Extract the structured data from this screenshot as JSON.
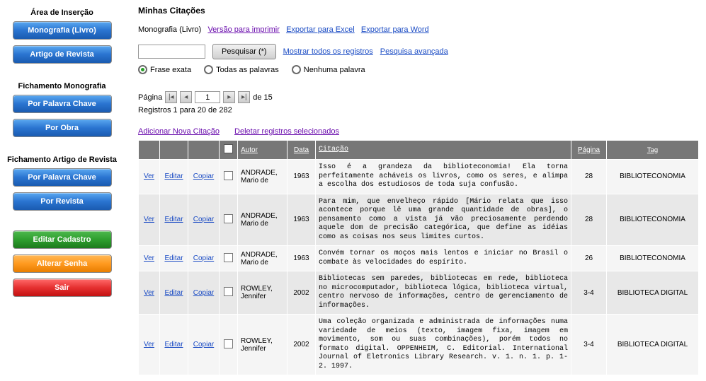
{
  "sidebar": {
    "sec1_title": "Área de Inserção",
    "btn1": "Monografia (Livro)",
    "btn2": "Artigo de Revista",
    "sec2_title": "Fichamento Monografia",
    "btn3": "Por Palavra Chave",
    "btn4": "Por Obra",
    "sec3_title": "Fichamento Artigo de Revista",
    "btn5": "Por Palavra Chave",
    "btn6": "Por Revista",
    "btn7": "Editar Cadastro",
    "btn8": "Alterar Senha",
    "btn9": "Sair"
  },
  "main": {
    "title": "Minhas Citações",
    "subtitle": "Monografia (Livro)",
    "link_print": "Versão para imprimir",
    "link_excel": "Exportar para Excel",
    "link_word": "Exportar para Word",
    "search_btn": "Pesquisar (*)",
    "link_showall": "Mostrar todos os registros",
    "link_adv": "Pesquisa avançada",
    "radio1": "Frase exata",
    "radio2": "Todas as palavras",
    "radio3": "Nenhuma palavra",
    "pager_label": "Página",
    "pager_page": "1",
    "pager_of": "de 15",
    "reg_info": "Registros 1 para 20 de 282",
    "link_add": "Adicionar Nova Citação",
    "link_del": "Deletar registros selecionados",
    "th_autor": "Autor",
    "th_data": "Data",
    "th_cit": "Citação",
    "th_pag": "Página",
    "th_tag": "Tag",
    "lbl_ver": "Ver",
    "lbl_editar": "Editar",
    "lbl_copiar": "Copiar",
    "rows": [
      {
        "autor": "ANDRADE, Mario de",
        "data": "1963",
        "cit": "Isso é a grandeza da biblioteconomia! Ela torna perfeitamente acháveis os livros, como os seres, e alimpa a escolha dos estudiosos de toda suja confusão.",
        "pag": "28",
        "tag": "BIBLIOTECONOMIA"
      },
      {
        "autor": "ANDRADE, Mario de",
        "data": "1963",
        "cit": "Para mim, que envelheço rápido [Mário relata que isso acontece porque lê uma grande quantidade de obras], o pensamento como a vista já vão preciosamente perdendo aquele dom de precisão categórica, que define as idéias como as coisas nos seus limites curtos.",
        "pag": "28",
        "tag": "BIBLIOTECONOMIA"
      },
      {
        "autor": "ANDRADE, Mario de",
        "data": "1963",
        "cit": "Convém tornar os moços mais lentos e iniciar no Brasil o combate às velocidades do espírito.",
        "pag": "26",
        "tag": "BIBLIOTECONOMIA"
      },
      {
        "autor": "ROWLEY, Jennifer",
        "data": "2002",
        "cit": "Bibliotecas sem paredes, bibliotecas em rede, biblioteca no microcomputador, biblioteca lógica, biblioteca virtual, centro nervoso de informações, centro de gerenciamento de informações.",
        "pag": "3-4",
        "tag": "BIBLIOTECA DIGITAL"
      },
      {
        "autor": "ROWLEY, Jennifer",
        "data": "2002",
        "cit": "Uma coleção organizada e administrada de informações numa variedade de meios (texto, imagem fixa, imagem em movimento, som ou suas combinações), porém todos no formato digital. OPPENHEIM, C. Editorial. International Journal of Eletronics Library Research. v. 1. n. 1. p. 1-2. 1997.",
        "pag": "3-4",
        "tag": "BIBLIOTECA DIGITAL"
      }
    ]
  }
}
